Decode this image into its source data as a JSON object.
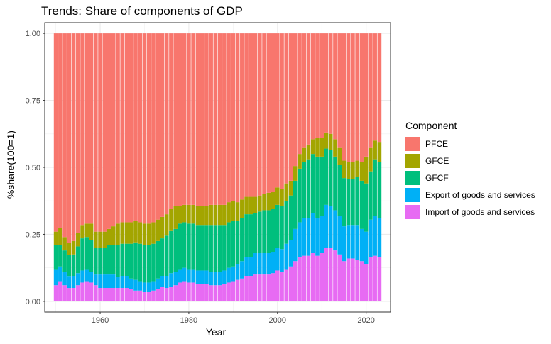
{
  "chart_data": {
    "type": "bar",
    "title": "Trends: Share of components of GDP",
    "xlabel": "Year",
    "ylabel": "%share(100=1)",
    "xlim": [
      1947.5,
      2025.5
    ],
    "ylim": [
      -0.04,
      1.04
    ],
    "x_ticks": [
      1960,
      1980,
      2000,
      2020
    ],
    "x_tick_labels": [
      "1960",
      "1980",
      "2000",
      "2020"
    ],
    "y_ticks": [
      0,
      0.25,
      0.5,
      0.75,
      1
    ],
    "y_tick_labels": [
      "0.00",
      "0.25",
      "0.50",
      "0.75",
      "1.00"
    ],
    "grid": true,
    "legend_position": "right",
    "legend_title": "Component",
    "stacking": "fill",
    "x": [
      1950,
      1951,
      1952,
      1953,
      1954,
      1955,
      1956,
      1957,
      1958,
      1959,
      1960,
      1961,
      1962,
      1963,
      1964,
      1965,
      1966,
      1967,
      1968,
      1969,
      1970,
      1971,
      1972,
      1973,
      1974,
      1975,
      1976,
      1977,
      1978,
      1979,
      1980,
      1981,
      1982,
      1983,
      1984,
      1985,
      1986,
      1987,
      1988,
      1989,
      1990,
      1991,
      1992,
      1993,
      1994,
      1995,
      1996,
      1997,
      1998,
      1999,
      2000,
      2001,
      2002,
      2003,
      2004,
      2005,
      2006,
      2007,
      2008,
      2009,
      2010,
      2011,
      2012,
      2013,
      2014,
      2015,
      2016,
      2017,
      2018,
      2019,
      2020,
      2021,
      2022,
      2023
    ],
    "series": [
      {
        "name": "Import of goods and services",
        "color": "#E76BF3",
        "values": [
          0.06,
          0.075,
          0.06,
          0.05,
          0.05,
          0.06,
          0.07,
          0.075,
          0.07,
          0.06,
          0.05,
          0.05,
          0.05,
          0.05,
          0.05,
          0.05,
          0.05,
          0.045,
          0.04,
          0.04,
          0.035,
          0.035,
          0.04,
          0.045,
          0.055,
          0.05,
          0.055,
          0.06,
          0.07,
          0.075,
          0.07,
          0.07,
          0.065,
          0.065,
          0.065,
          0.06,
          0.06,
          0.06,
          0.065,
          0.07,
          0.075,
          0.08,
          0.085,
          0.095,
          0.095,
          0.1,
          0.1,
          0.1,
          0.1,
          0.105,
          0.115,
          0.11,
          0.12,
          0.13,
          0.15,
          0.165,
          0.17,
          0.17,
          0.18,
          0.17,
          0.18,
          0.2,
          0.2,
          0.19,
          0.175,
          0.15,
          0.16,
          0.16,
          0.155,
          0.15,
          0.14,
          0.165,
          0.17,
          0.165
        ]
      },
      {
        "name": "Export of goods and services",
        "color": "#00B0F6",
        "values": [
          0.06,
          0.055,
          0.05,
          0.045,
          0.045,
          0.045,
          0.045,
          0.045,
          0.04,
          0.04,
          0.05,
          0.05,
          0.05,
          0.05,
          0.04,
          0.045,
          0.045,
          0.04,
          0.04,
          0.035,
          0.035,
          0.035,
          0.035,
          0.04,
          0.04,
          0.045,
          0.05,
          0.05,
          0.05,
          0.05,
          0.05,
          0.05,
          0.05,
          0.05,
          0.05,
          0.05,
          0.05,
          0.05,
          0.05,
          0.055,
          0.055,
          0.06,
          0.065,
          0.07,
          0.07,
          0.08,
          0.08,
          0.08,
          0.08,
          0.08,
          0.085,
          0.085,
          0.095,
          0.1,
          0.12,
          0.13,
          0.14,
          0.14,
          0.15,
          0.14,
          0.14,
          0.16,
          0.155,
          0.15,
          0.145,
          0.13,
          0.125,
          0.125,
          0.13,
          0.12,
          0.12,
          0.14,
          0.15,
          0.145
        ]
      },
      {
        "name": "GFCF",
        "color": "#00BF7D",
        "values": [
          0.09,
          0.08,
          0.08,
          0.08,
          0.08,
          0.1,
          0.12,
          0.12,
          0.12,
          0.1,
          0.1,
          0.1,
          0.11,
          0.11,
          0.12,
          0.12,
          0.12,
          0.13,
          0.14,
          0.14,
          0.14,
          0.14,
          0.14,
          0.14,
          0.14,
          0.15,
          0.16,
          0.16,
          0.17,
          0.17,
          0.17,
          0.17,
          0.17,
          0.17,
          0.17,
          0.175,
          0.175,
          0.175,
          0.17,
          0.17,
          0.17,
          0.16,
          0.16,
          0.16,
          0.16,
          0.15,
          0.155,
          0.16,
          0.16,
          0.16,
          0.16,
          0.16,
          0.16,
          0.165,
          0.18,
          0.2,
          0.21,
          0.22,
          0.22,
          0.23,
          0.22,
          0.21,
          0.21,
          0.2,
          0.19,
          0.18,
          0.17,
          0.17,
          0.18,
          0.18,
          0.18,
          0.18,
          0.21,
          0.21
        ]
      },
      {
        "name": "GFCE",
        "color": "#A3A500",
        "values": [
          0.05,
          0.065,
          0.05,
          0.045,
          0.05,
          0.05,
          0.05,
          0.05,
          0.06,
          0.06,
          0.06,
          0.06,
          0.06,
          0.07,
          0.08,
          0.08,
          0.08,
          0.08,
          0.08,
          0.08,
          0.08,
          0.08,
          0.08,
          0.08,
          0.08,
          0.08,
          0.08,
          0.085,
          0.065,
          0.065,
          0.07,
          0.07,
          0.07,
          0.07,
          0.07,
          0.075,
          0.075,
          0.075,
          0.075,
          0.075,
          0.075,
          0.07,
          0.07,
          0.065,
          0.065,
          0.06,
          0.06,
          0.06,
          0.065,
          0.065,
          0.065,
          0.065,
          0.065,
          0.055,
          0.055,
          0.055,
          0.055,
          0.055,
          0.055,
          0.07,
          0.07,
          0.06,
          0.06,
          0.065,
          0.065,
          0.065,
          0.065,
          0.065,
          0.06,
          0.07,
          0.1,
          0.09,
          0.07,
          0.075
        ]
      },
      {
        "name": "PFCE",
        "color": "#F8766D",
        "values": [
          0.74,
          0.725,
          0.76,
          0.785,
          0.775,
          0.745,
          0.715,
          0.71,
          0.71,
          0.74,
          0.74,
          0.74,
          0.73,
          0.72,
          0.71,
          0.705,
          0.705,
          0.705,
          0.7,
          0.705,
          0.71,
          0.71,
          0.705,
          0.695,
          0.685,
          0.675,
          0.655,
          0.645,
          0.645,
          0.64,
          0.64,
          0.64,
          0.645,
          0.645,
          0.645,
          0.64,
          0.64,
          0.64,
          0.64,
          0.63,
          0.625,
          0.63,
          0.62,
          0.61,
          0.61,
          0.61,
          0.605,
          0.6,
          0.595,
          0.59,
          0.575,
          0.58,
          0.56,
          0.55,
          0.495,
          0.45,
          0.425,
          0.415,
          0.395,
          0.39,
          0.39,
          0.37,
          0.375,
          0.395,
          0.425,
          0.475,
          0.48,
          0.48,
          0.475,
          0.48,
          0.46,
          0.425,
          0.4,
          0.405
        ]
      }
    ],
    "legend_order": [
      "PFCE",
      "GFCE",
      "GFCF",
      "Export of goods and services",
      "Import of goods and services"
    ]
  }
}
